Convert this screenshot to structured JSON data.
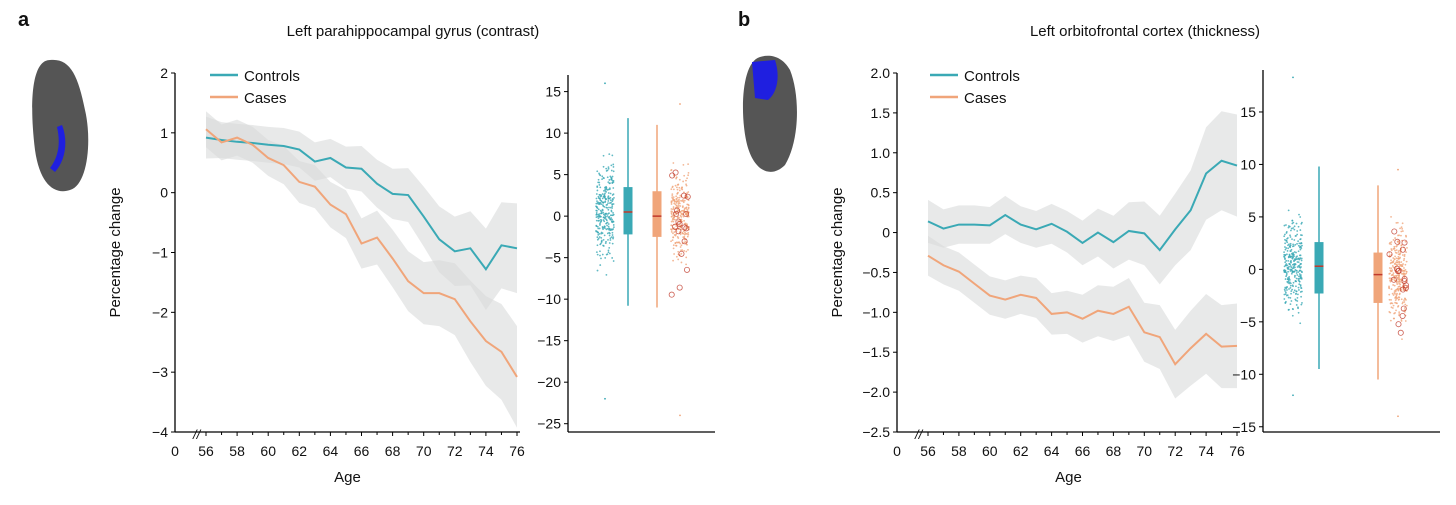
{
  "colors": {
    "controls": "#3aa9b5",
    "cases": "#f0a57a",
    "band": "#d9dadb",
    "median": "#c0392b",
    "brain": "#5a5a5a",
    "region": "#1f1fe0"
  },
  "chart_data": [
    {
      "panel_label": "a",
      "type": "line",
      "title": "Left parahippocampal gyrus (contrast)",
      "xlabel": "Age",
      "ylabel": "Percentage change",
      "ylim": [
        -4,
        2
      ],
      "yticks": [
        "2",
        "1",
        "0",
        "−1",
        "−2",
        "−3",
        "−4"
      ],
      "ytick_values": [
        2,
        1,
        0,
        -1,
        -2,
        -3,
        -4
      ],
      "xticks": [
        "0",
        "56",
        "58",
        "60",
        "62",
        "64",
        "66",
        "68",
        "70",
        "72",
        "74",
        "76"
      ],
      "x": [
        56,
        57,
        58,
        59,
        60,
        61,
        62,
        63,
        64,
        65,
        66,
        67,
        68,
        69,
        70,
        71,
        72,
        73,
        74,
        75,
        76
      ],
      "series": [
        {
          "name": "Controls",
          "values": [
            0.92,
            0.88,
            0.85,
            0.83,
            0.8,
            0.78,
            0.72,
            0.52,
            0.58,
            0.42,
            0.4,
            0.15,
            -0.02,
            -0.04,
            -0.4,
            -0.78,
            -0.98,
            -0.93,
            -1.28,
            -0.88,
            -0.93
          ],
          "ci": [
            0.35,
            0.3,
            0.3,
            0.3,
            0.3,
            0.3,
            0.3,
            0.32,
            0.32,
            0.35,
            0.38,
            0.4,
            0.42,
            0.45,
            0.5,
            0.55,
            0.58,
            0.62,
            0.68,
            0.72,
            0.75
          ]
        },
        {
          "name": "Cases",
          "values": [
            1.06,
            0.84,
            0.92,
            0.8,
            0.58,
            0.46,
            0.18,
            0.1,
            -0.2,
            -0.36,
            -0.85,
            -0.75,
            -1.1,
            -1.48,
            -1.68,
            -1.68,
            -1.78,
            -2.15,
            -2.48,
            -2.66,
            -3.08
          ],
          "ci": [
            0.3,
            0.3,
            0.3,
            0.3,
            0.3,
            0.32,
            0.35,
            0.36,
            0.38,
            0.4,
            0.42,
            0.45,
            0.48,
            0.5,
            0.52,
            0.55,
            0.6,
            0.68,
            0.75,
            0.8,
            0.85
          ]
        }
      ],
      "legend": "top-left",
      "box": {
        "ylim": [
          -26,
          17
        ],
        "yticks": [
          "15",
          "10",
          "5",
          "0",
          "−5",
          "−10",
          "−15",
          "−20",
          "−25"
        ],
        "ytick_values": [
          15,
          10,
          5,
          0,
          -5,
          -10,
          -15,
          -20,
          -25
        ],
        "groups": [
          {
            "name": "Controls",
            "median": 0.5,
            "q1": -2.2,
            "q3": 3.5,
            "whisker_low": -10.8,
            "whisker_high": 11.8,
            "min": -22,
            "max": 16,
            "n": 300
          },
          {
            "name": "Cases",
            "median": 0,
            "q1": -2.5,
            "q3": 3,
            "whisker_low": -11,
            "whisker_high": 11,
            "min": -24,
            "max": 13.5,
            "n": 300
          }
        ]
      }
    },
    {
      "panel_label": "b",
      "type": "line",
      "title": "Left orbitofrontal cortex (thickness)",
      "xlabel": "Age",
      "ylabel": "Percentage change",
      "ylim": [
        -2.5,
        2.0
      ],
      "yticks": [
        "2.0",
        "1.5",
        "1.0",
        "0.5",
        "0",
        "−0.5",
        "−1.0",
        "−1.5",
        "−2.0",
        "−2.5"
      ],
      "ytick_values": [
        2,
        1.5,
        1,
        0.5,
        0,
        -0.5,
        -1,
        -1.5,
        -2,
        -2.5
      ],
      "xticks": [
        "0",
        "56",
        "58",
        "60",
        "62",
        "64",
        "66",
        "68",
        "70",
        "72",
        "74",
        "76"
      ],
      "x": [
        56,
        57,
        58,
        59,
        60,
        61,
        62,
        63,
        64,
        65,
        66,
        67,
        68,
        69,
        70,
        71,
        72,
        73,
        74,
        75,
        76
      ],
      "series": [
        {
          "name": "Controls",
          "values": [
            0.14,
            0.05,
            0.1,
            0.1,
            0.09,
            0.22,
            0.1,
            0.04,
            0.11,
            0.01,
            -0.13,
            0.0,
            -0.12,
            0.02,
            -0.01,
            -0.22,
            0.04,
            0.28,
            0.74,
            0.9,
            0.84
          ],
          "ci": [
            0.27,
            0.24,
            0.24,
            0.24,
            0.23,
            0.24,
            0.23,
            0.23,
            0.25,
            0.26,
            0.28,
            0.3,
            0.33,
            0.36,
            0.4,
            0.43,
            0.45,
            0.5,
            0.58,
            0.62,
            0.64
          ]
        },
        {
          "name": "Cases",
          "values": [
            -0.29,
            -0.41,
            -0.49,
            -0.64,
            -0.79,
            -0.84,
            -0.78,
            -0.82,
            -1.02,
            -1.0,
            -1.08,
            -0.98,
            -1.02,
            -0.93,
            -1.25,
            -1.31,
            -1.65,
            -1.45,
            -1.27,
            -1.43,
            -1.42
          ],
          "ci": [
            0.25,
            0.24,
            0.24,
            0.24,
            0.24,
            0.24,
            0.24,
            0.25,
            0.26,
            0.27,
            0.3,
            0.32,
            0.34,
            0.36,
            0.37,
            0.4,
            0.43,
            0.47,
            0.5,
            0.52,
            0.53
          ]
        }
      ],
      "legend": "top-left",
      "box": {
        "ylim": [
          -15.5,
          19
        ],
        "yticks": [
          "15",
          "10",
          "5",
          "0",
          "−5",
          "−10",
          "−15"
        ],
        "ytick_values": [
          15,
          10,
          5,
          0,
          -5,
          -10,
          -15
        ],
        "groups": [
          {
            "name": "Controls",
            "median": 0.3,
            "q1": -2.3,
            "q3": 2.6,
            "whisker_low": -9.5,
            "whisker_high": 9.8,
            "min": -12,
            "max": 18.3,
            "n": 300
          },
          {
            "name": "Cases",
            "median": -0.5,
            "q1": -3.2,
            "q3": 1.6,
            "whisker_low": -10.5,
            "whisker_high": 8,
            "min": -14,
            "max": 9.5,
            "n": 300
          }
        ]
      }
    }
  ]
}
